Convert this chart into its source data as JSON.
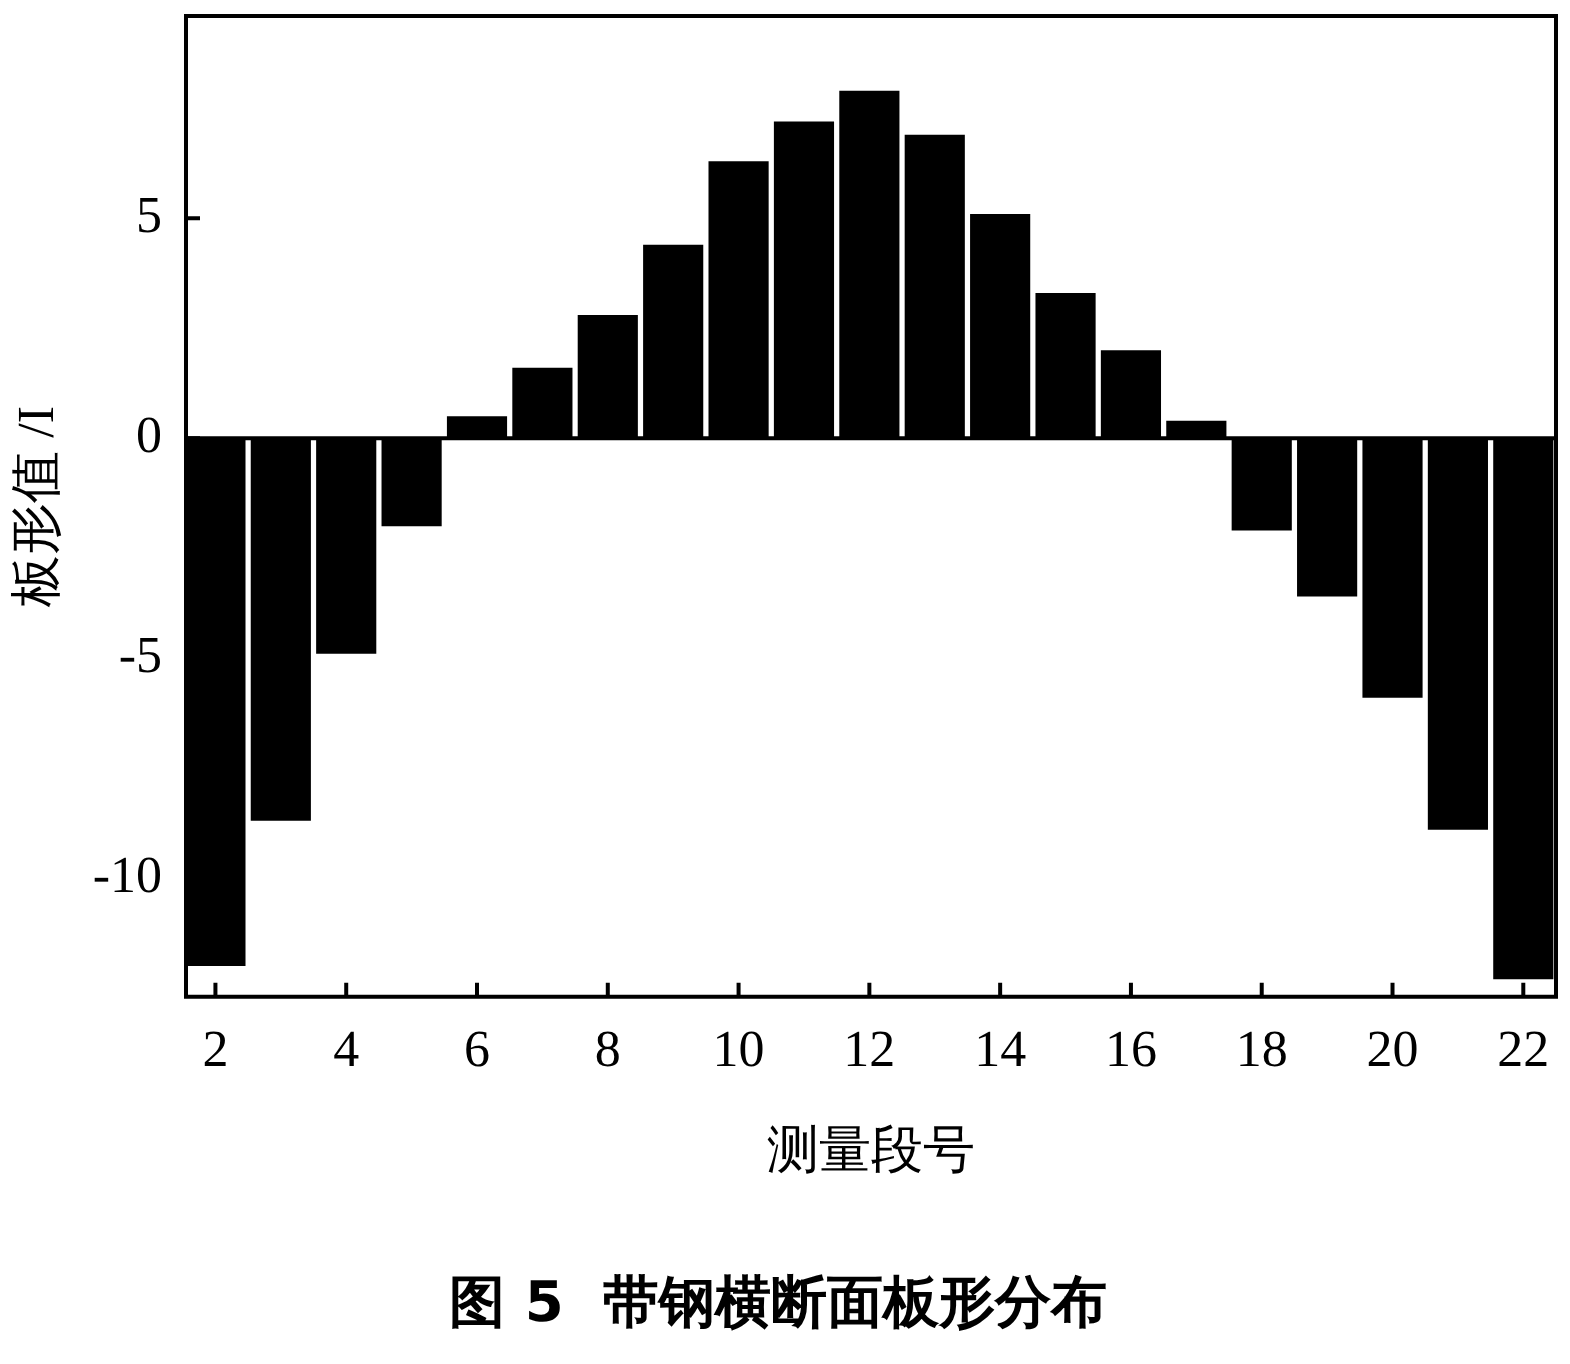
{
  "chart_data": {
    "type": "bar",
    "title": "图 5  带钢横断面板形分布",
    "xlabel": "测量段号",
    "ylabel": "板形值 /I",
    "x": [
      2,
      3,
      4,
      5,
      6,
      7,
      8,
      9,
      10,
      11,
      12,
      13,
      14,
      15,
      16,
      17,
      18,
      19,
      20,
      21,
      22
    ],
    "values": [
      -12.0,
      -8.7,
      -4.9,
      -2.0,
      0.5,
      1.6,
      2.8,
      4.4,
      6.3,
      7.2,
      7.9,
      6.9,
      5.1,
      3.3,
      2.0,
      0.4,
      -2.1,
      -3.6,
      -5.9,
      -8.9,
      -12.3
    ],
    "color": "#000000",
    "xlim": [
      1.55,
      22.5
    ],
    "ylim": [
      -12.7,
      9.6
    ],
    "xticks": [
      2,
      4,
      6,
      8,
      10,
      12,
      14,
      16,
      18,
      20,
      22
    ],
    "yticks": [
      -10,
      -5,
      0,
      5
    ],
    "ref_lines": [
      {
        "axis": "y",
        "value": 0
      }
    ]
  }
}
